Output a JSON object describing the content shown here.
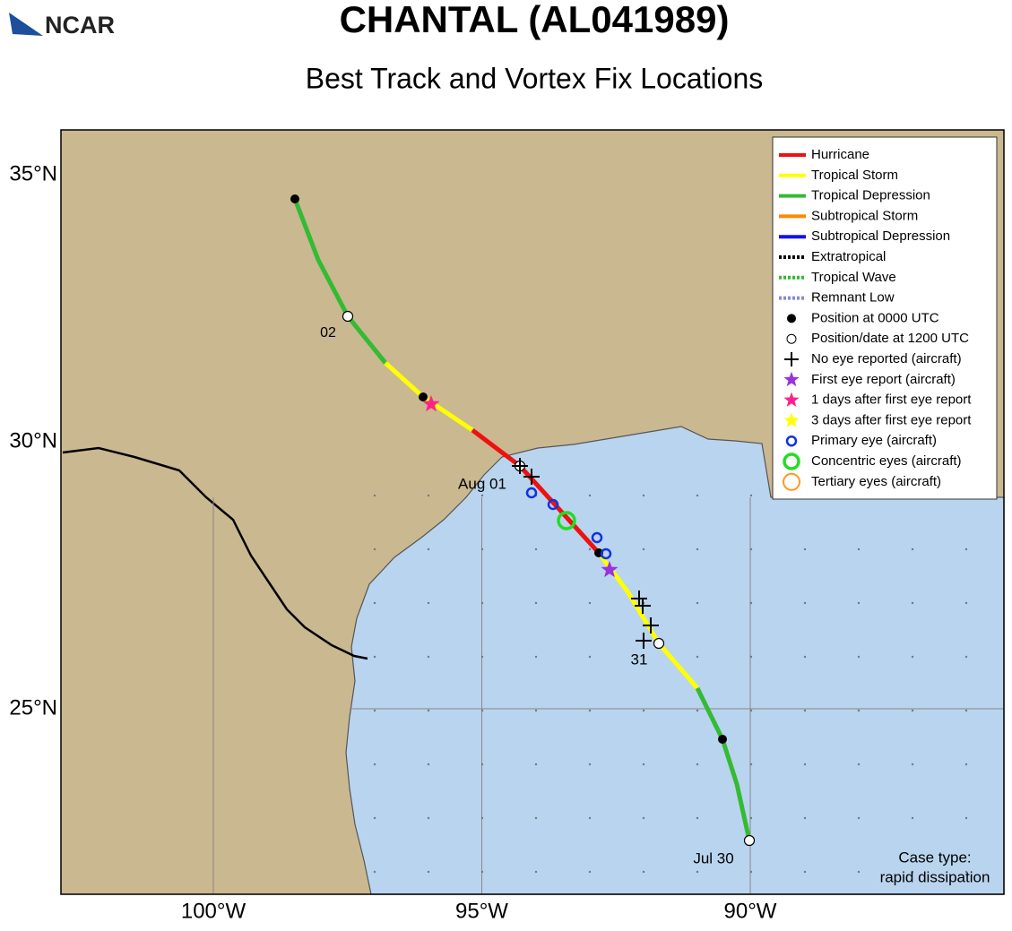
{
  "header": {
    "logo": "NCAR",
    "title": "CHANTAL (AL041989)",
    "subtitle": "Best Track and Vortex Fix Locations"
  },
  "map": {
    "lon_ticks": [
      {
        "value": -100,
        "label": "100°W"
      },
      {
        "value": -95,
        "label": "95°W"
      },
      {
        "value": -90,
        "label": "90°W"
      }
    ],
    "lat_ticks": [
      {
        "value": 35,
        "label": "35°N"
      },
      {
        "value": 30,
        "label": "30°N"
      },
      {
        "value": 25,
        "label": "25°N"
      }
    ],
    "track_labels": [
      "02",
      "Aug 01",
      "31",
      "Jul 30"
    ],
    "case_type": [
      "Case type:",
      "rapid dissipation"
    ]
  },
  "legend": [
    "Hurricane",
    "Tropical Storm",
    "Tropical Depression",
    "Subtropical Storm",
    "Subtropical Depression",
    "Extratropical",
    "Tropical Wave",
    "Remnant Low",
    "Position at 0000 UTC",
    "Position/date at 1200 UTC",
    "No eye reported (aircraft)",
    "First eye report (aircraft)",
    "1 days after first eye report",
    "3 days after first eye report",
    "Primary eye (aircraft)",
    "Concentric eyes (aircraft)",
    "Tertiary eyes (aircraft)"
  ]
}
